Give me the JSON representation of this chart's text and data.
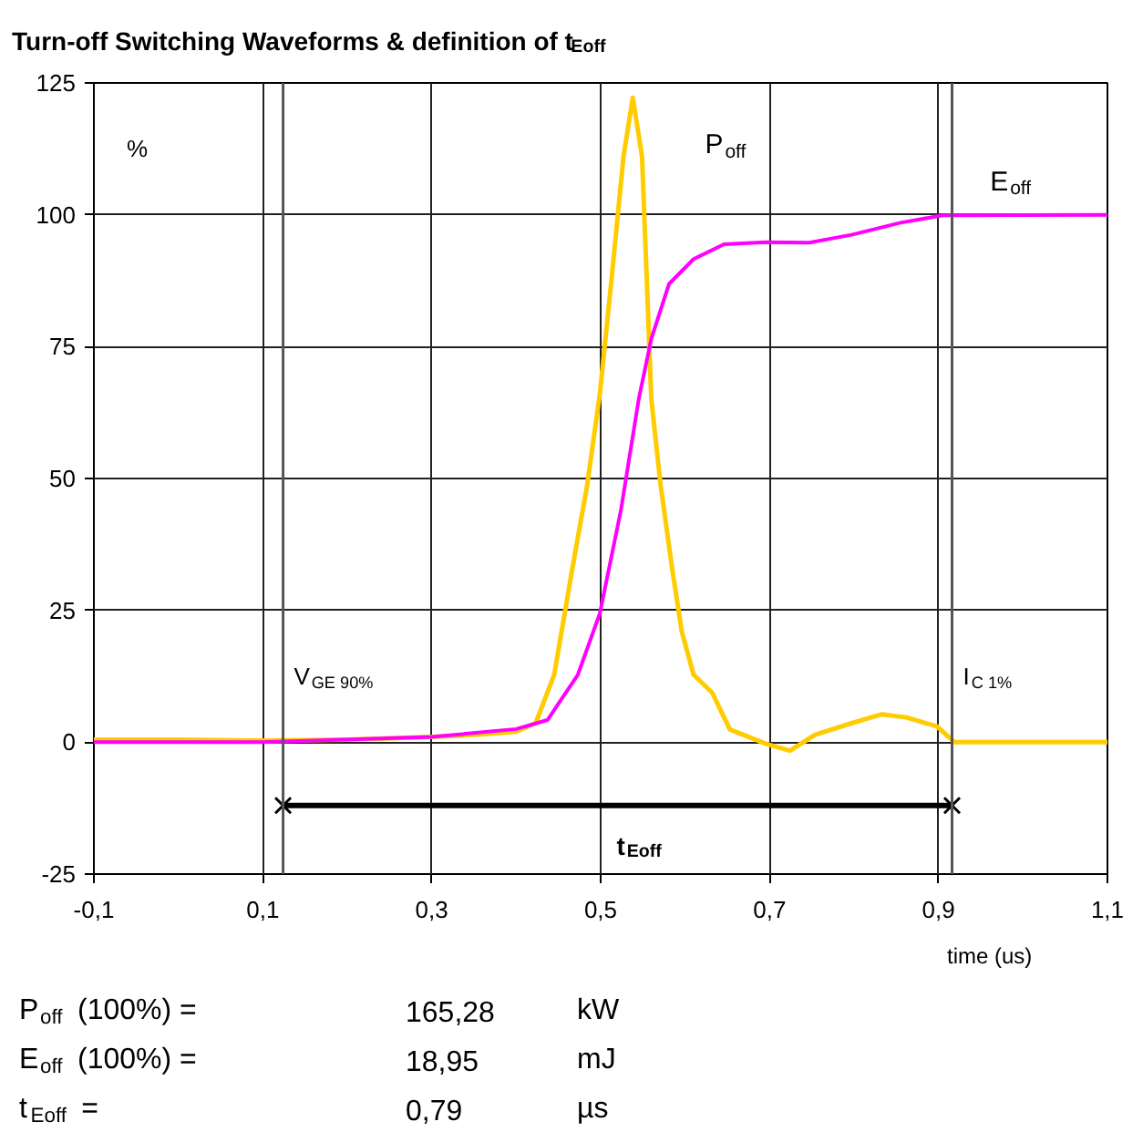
{
  "chart_data": {
    "type": "line",
    "title": "Turn-off Switching Waveforms & definition of t$_{Eoff}$",
    "xlabel": "time (us)",
    "ylabel": "%",
    "xlim": [
      -0.1,
      1.1
    ],
    "ylim": [
      -25,
      125
    ],
    "xticks": [
      {
        "value": -0.1,
        "label": "-0,1"
      },
      {
        "value": 0.1,
        "label": "0,1"
      },
      {
        "value": 0.3,
        "label": "0,3"
      },
      {
        "value": 0.5,
        "label": "0,5"
      },
      {
        "value": 0.7,
        "label": "0,7"
      },
      {
        "value": 0.9,
        "label": "0,9"
      },
      {
        "value": 1.1,
        "label": "1,1"
      }
    ],
    "yticks": [
      -25,
      0,
      25,
      50,
      75,
      100,
      125
    ],
    "grid": true,
    "marker": "none",
    "line_style": "solid",
    "series": [
      {
        "name": "P$_{off}$",
        "color": "#ffcc00",
        "x": [
          -0.1,
          0.0,
          0.1,
          0.2,
          0.3,
          0.36,
          0.4,
          0.423,
          0.445,
          0.466,
          0.484,
          0.499,
          0.513,
          0.527,
          0.538,
          0.549,
          0.56,
          0.571,
          0.585,
          0.596,
          0.61,
          0.632,
          0.653,
          0.696,
          0.724,
          0.754,
          0.797,
          0.833,
          0.862,
          0.898,
          0.919,
          1.0,
          1.1
        ],
        "values": [
          0.5,
          0.5,
          0.3,
          0.5,
          1.0,
          1.5,
          2.0,
          3.6,
          12.8,
          32.5,
          48.7,
          66,
          88,
          111,
          122.2,
          111,
          65,
          48.7,
          32.5,
          21,
          12.8,
          9.4,
          2.4,
          -0.3,
          -1.6,
          1.4,
          3.6,
          5.3,
          4.7,
          3.0,
          0,
          0,
          0
        ]
      },
      {
        "name": "E$_{off}$",
        "color": "#ff00ff",
        "x": [
          -0.1,
          0.1,
          0.3,
          0.4,
          0.437,
          0.473,
          0.499,
          0.524,
          0.545,
          0.56,
          0.581,
          0.61,
          0.646,
          0.696,
          0.747,
          0.797,
          0.855,
          0.905,
          1.1
        ],
        "values": [
          0,
          0,
          1,
          2.5,
          4.2,
          12.8,
          24.4,
          44,
          65,
          76.5,
          86.9,
          91.6,
          94.4,
          94.8,
          94.7,
          96.2,
          98.5,
          99.9,
          100
        ]
      },
      {
        "name": "t$_{Eoff}$",
        "color": "#000000",
        "marker": "cross",
        "x": [
          0.124,
          0.916
        ],
        "values": [
          -12,
          -12
        ]
      }
    ],
    "ref_lines": [
      {
        "axis": "x",
        "value": 0.124,
        "label": "V$_{GE 90%}$",
        "color": "#555555"
      },
      {
        "axis": "x",
        "value": 0.916,
        "label": "I$_{C 1%}$",
        "color": "#555555"
      }
    ],
    "annotations": [
      "P$_{off}$ (100%) =",
      "165,28",
      "kW",
      "E$_{off}$ (100%) =",
      "18,95",
      "mJ",
      "t$_{Eoff}$ =",
      "0,79",
      "µs"
    ]
  }
}
